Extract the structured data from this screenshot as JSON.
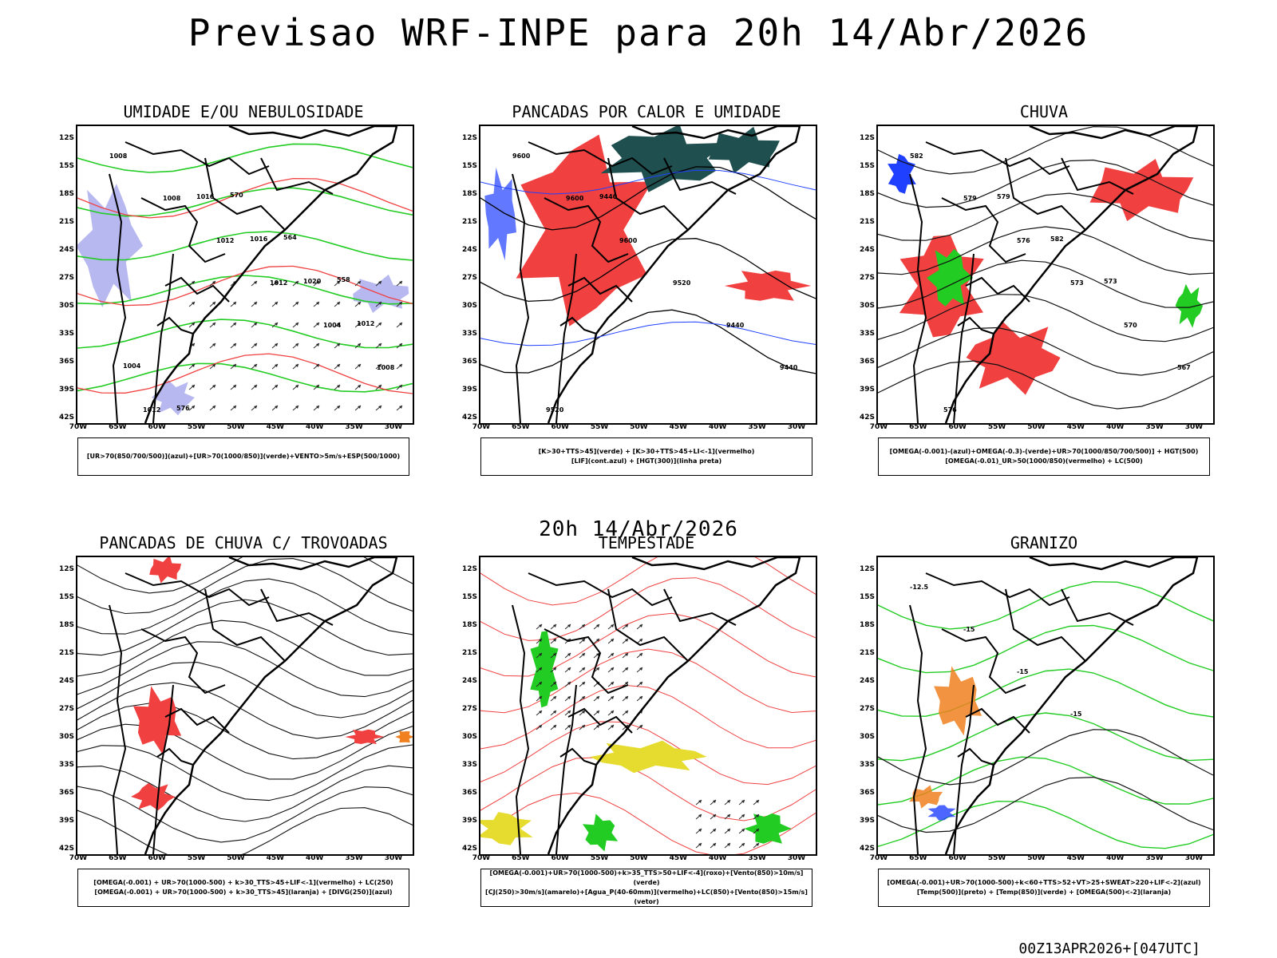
{
  "header": {
    "title": "Previsao WRF-INPE  para 20h 14/Abr/2026",
    "mid_title": "20h 14/Abr/2026",
    "footer": "00Z13APR2026+[047UTC]"
  },
  "axes": {
    "lat_labels": [
      "12S",
      "15S",
      "18S",
      "21S",
      "24S",
      "27S",
      "30S",
      "33S",
      "36S",
      "39S",
      "42S"
    ],
    "lon_labels": [
      "70W",
      "65W",
      "60W",
      "55W",
      "50W",
      "45W",
      "40W",
      "35W",
      "30W"
    ]
  },
  "panels": [
    {
      "id": "umidade",
      "title": "UMIDADE E/OU NEBULOSIDADE",
      "legend": [
        "[UR>70(850/700/500)](azul)+[UR>70(1000/850)](verde)+VENTO>5m/s+ESP(500/1000)"
      ],
      "labels": [
        "1008",
        "1008",
        "1012",
        "1012",
        "1004",
        "1008",
        "1012",
        "1016",
        "1016",
        "1020",
        "1012",
        "1004",
        "576",
        "570",
        "564",
        "558"
      ]
    },
    {
      "id": "pancadas-calor",
      "title": "PANCADAS POR CALOR E UMIDADE",
      "legend": [
        "[K>30+TTS>45](verde) + [K>30+TTS>45+LI<-1](vermelho)",
        "[LIF](cont.azul) + [HGT(300)](linha preta)"
      ],
      "labels": [
        "9600",
        "9600",
        "9600",
        "9520",
        "9440",
        "9440",
        "9520",
        "9440"
      ]
    },
    {
      "id": "chuva",
      "title": "CHUVA",
      "legend": [
        "[OMEGA(-0.001)-(azul)+OMEGA(-0.3)-(verde)+UR>70(1000/850/700/500)] + HGT(500)",
        "[OMEGA(-0.01)_UR>50(1000/850)(vermelho) + LC(500)"
      ],
      "labels": [
        "582",
        "579",
        "576",
        "573",
        "570",
        "567",
        "576",
        "579",
        "582",
        "573"
      ]
    },
    {
      "id": "pancadas-trovoadas",
      "title": "PANCADAS DE CHUVA C/ TROVOADAS",
      "legend": [
        "[OMEGA(-0.001) + UR>70(1000-500) + k>30_TTS>45+LIF<-1](vermelho) + LC(250)",
        "[OMEGA(-0.001) + UR>70(1000-500) + k>30_TTS>45](laranja) + [DIVG(250)](azul)"
      ],
      "labels": []
    },
    {
      "id": "tempestade",
      "title": "TEMPESTADE",
      "legend": [
        "[OMEGA(-0.001)+UR>70(1000-500)+k>35_TTS>50+LIF<-4](roxo)+[Vento(850)>10m/s](verde)",
        "[CJ(250)>30m/s](amarelo)+[Agua_P(40-60mm)](vermelho)+LC(850)+[Vento(850)>15m/s](vetor)"
      ],
      "labels": []
    },
    {
      "id": "granizo",
      "title": "GRANIZO",
      "legend": [
        "[OMEGA(-0.001)+UR>70(1000-500)+k<60+TTS>52+VT>25+SWEAT>220+LIF<-2](azul)",
        "[Temp(500)](preto) + [Temp(850)](verde) + [OMEGA(500)<-2](laranja)"
      ],
      "labels": [
        "-12.5",
        "-15",
        "-15",
        "-15"
      ]
    }
  ],
  "colors": {
    "red": "#f04040",
    "green": "#22cc22",
    "blue": "#2040ff",
    "lavender": "#b0b0f0",
    "darkteal": "#1f4f4f",
    "yellow": "#e6dc30",
    "orange": "#f08020"
  }
}
